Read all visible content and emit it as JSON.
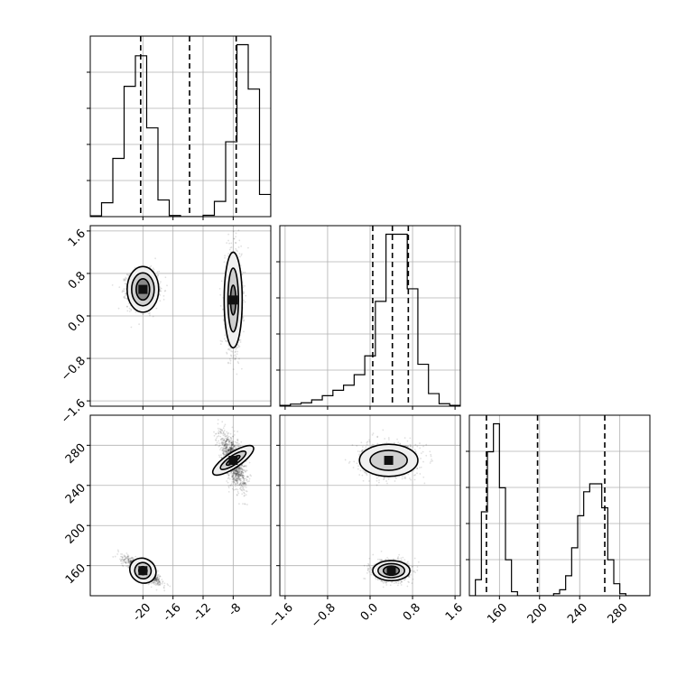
{
  "chart_data": [
    {
      "id": "hist_x",
      "type": "histogram",
      "xlim": [
        -27,
        -3
      ],
      "bin_edges": [
        -27,
        -25.5,
        -24,
        -22.5,
        -21,
        -19.5,
        -18,
        -16.5,
        -15,
        -13.5,
        -12,
        -10.5,
        -9,
        -7.5,
        -6,
        -4.5,
        -3
      ],
      "counts": [
        0.03,
        0.5,
        2.1,
        4.7,
        5.8,
        3.2,
        0.6,
        0.04,
        0,
        0,
        0.05,
        0.55,
        2.7,
        6.2,
        4.6,
        0.8,
        0.02
      ],
      "quantile_lines": [
        -20.3,
        -13.8,
        -7.6
      ],
      "xticks": [
        -20,
        -16,
        -12,
        -8
      ],
      "grid": true
    },
    {
      "id": "hist_y",
      "type": "histogram",
      "xlim": [
        -1.7,
        1.7
      ],
      "bin_edges": [
        -1.7,
        -1.5,
        -1.3,
        -1.1,
        -0.9,
        -0.7,
        -0.5,
        -0.3,
        -0.1,
        0.1,
        0.3,
        0.5,
        0.7,
        0.9,
        1.1,
        1.3,
        1.5,
        1.7
      ],
      "counts": [
        0.02,
        0.05,
        0.08,
        0.15,
        0.25,
        0.38,
        0.5,
        0.75,
        1.2,
        2.5,
        4.1,
        4.1,
        2.8,
        1.0,
        0.3,
        0.06,
        0.02
      ],
      "quantile_lines": [
        0.05,
        0.42,
        0.72
      ],
      "xticks": [
        -1.6,
        -0.8,
        0.0,
        0.8,
        1.6
      ],
      "xtick_labels": [
        "−1.6",
        "−0.8",
        "0.0",
        "0.8",
        "1.6"
      ],
      "grid": true
    },
    {
      "id": "hist_z",
      "type": "histogram",
      "xlim": [
        130,
        310
      ],
      "bin_edges": [
        130,
        136,
        142,
        148,
        154,
        160,
        166,
        172,
        178,
        184,
        190,
        196,
        202,
        208,
        214,
        220,
        226,
        232,
        238,
        244,
        250,
        256,
        262,
        268,
        274,
        280,
        286,
        292,
        298,
        304,
        310
      ],
      "counts": [
        0,
        0.4,
        2.1,
        3.6,
        4.3,
        2.7,
        0.9,
        0.1,
        0,
        0,
        0,
        0,
        0,
        0,
        0.05,
        0.15,
        0.5,
        1.2,
        2.0,
        2.6,
        2.8,
        2.8,
        2.2,
        0.9,
        0.3,
        0.05,
        0,
        0,
        0,
        0
      ],
      "quantile_lines": [
        147,
        198,
        265
      ],
      "xticks": [
        160,
        200,
        240,
        280
      ],
      "grid": true
    },
    {
      "id": "scatter_x_y",
      "type": "scatter",
      "xlim": [
        -27,
        -3
      ],
      "ylim": [
        -1.7,
        1.7
      ],
      "yticks": [
        -1.6,
        -0.8,
        0.0,
        0.8,
        1.6
      ],
      "ytick_labels": [
        "−1.6",
        "−0.8",
        "0.0",
        "0.8",
        "1.6"
      ],
      "grid": true,
      "clusters": [
        {
          "mean": [
            -20.0,
            0.5
          ],
          "sd": [
            1.0,
            0.17
          ],
          "corr": 0.0,
          "n": 1400,
          "levels": [
            [
              2.1,
              0.43
            ],
            [
              1.5,
              0.31
            ],
            [
              0.9,
              0.2
            ]
          ]
        },
        {
          "mean": [
            -8.0,
            0.3
          ],
          "sd": [
            0.55,
            0.45
          ],
          "corr": 0.0,
          "n": 1400,
          "levels": [
            [
              1.2,
              0.9
            ],
            [
              0.7,
              0.6
            ],
            [
              0.35,
              0.28
            ]
          ]
        }
      ]
    },
    {
      "id": "scatter_x_z",
      "type": "scatter",
      "xlim": [
        -27,
        -3
      ],
      "ylim": [
        130,
        310
      ],
      "yticks": [
        160,
        200,
        240,
        280
      ],
      "grid": true,
      "clusters": [
        {
          "mean": [
            -20.0,
            155
          ],
          "sd": [
            1.1,
            6
          ],
          "corr": -0.85,
          "n": 1400,
          "levels": [
            [
              1.8,
              12
            ],
            [
              1.1,
              8
            ],
            [
              0.55,
              4
            ]
          ]
        },
        {
          "mean": [
            -8.0,
            265
          ],
          "sd": [
            0.8,
            13
          ],
          "corr": -0.6,
          "n": 1400,
          "levels": [
            [
              1.0,
              24
            ],
            [
              0.6,
              15
            ],
            [
              0.3,
              8
            ]
          ]
        }
      ]
    },
    {
      "id": "scatter_y_z",
      "type": "scatter",
      "xlim": [
        -1.7,
        1.7
      ],
      "ylim": [
        130,
        310
      ],
      "grid": true,
      "clusters": [
        {
          "mean": [
            0.35,
            265
          ],
          "sd": [
            0.25,
            8
          ],
          "corr": 0.0,
          "n": 1400,
          "levels": [
            [
              0.55,
              16
            ],
            [
              0.35,
              10
            ]
          ]
        },
        {
          "mean": [
            0.4,
            155
          ],
          "sd": [
            0.16,
            5
          ],
          "corr": 0.0,
          "n": 1400,
          "levels": [
            [
              0.35,
              10
            ],
            [
              0.25,
              7
            ],
            [
              0.15,
              4.5
            ]
          ]
        }
      ]
    }
  ]
}
